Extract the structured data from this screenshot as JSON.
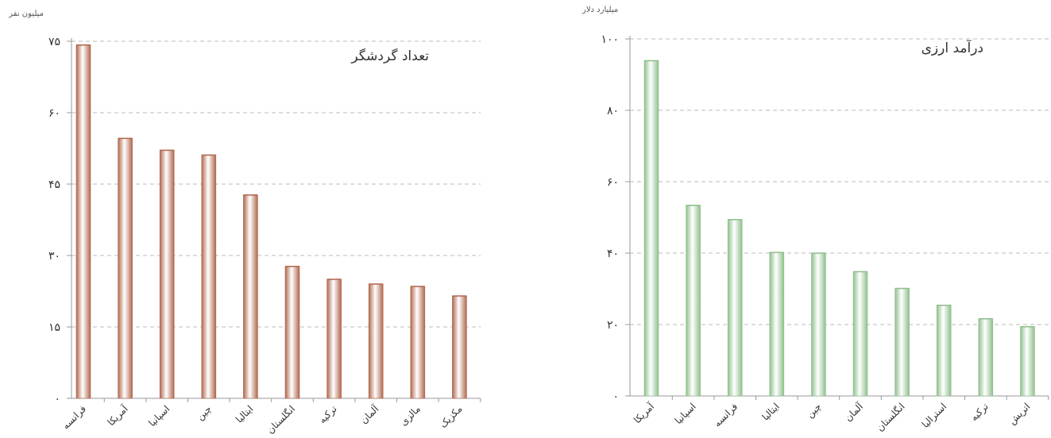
{
  "colors": {
    "tourists_bar": "#b0664c",
    "revenue_bar": "#8fbf8c",
    "axis": "#999999",
    "grid": "#bbbbbb",
    "text": "#333333"
  },
  "chart_data": [
    {
      "type": "bar",
      "title": "تعداد گردشگر",
      "ylabel": "میلیون نفر",
      "xlabel": "",
      "ylim": [
        0,
        75
      ],
      "yticks": [
        0,
        15,
        30,
        45,
        60,
        75
      ],
      "ytick_labels": [
        "۰",
        "۱۵",
        "۳۰",
        "۴۵",
        "۶۰",
        "۷۵"
      ],
      "grid": true,
      "categories": [
        "فرانسه",
        "آمریکا",
        "اسپانیا",
        "چین",
        "ایتالیا",
        "انگلستان",
        "ترکیه",
        "آلمان",
        "مالزی",
        "مکزیک"
      ],
      "values": [
        74.2,
        54.6,
        52.1,
        51.1,
        42.7,
        27.7,
        25.0,
        24.0,
        23.5,
        21.5
      ]
    },
    {
      "type": "bar",
      "title": "درآمد ارزی",
      "ylabel": "میلیارد دلار",
      "xlabel": "",
      "ylim": [
        0,
        100
      ],
      "yticks": [
        0,
        20,
        40,
        60,
        80,
        100
      ],
      "ytick_labels": [
        "۰",
        "۲۰",
        "۴۰",
        "۶۰",
        "۸۰",
        "۱۰۰"
      ],
      "grid": true,
      "categories": [
        "آمریکا",
        "اسپانیا",
        "فرانسه",
        "ایتالیا",
        "چین",
        "آلمان",
        "انگلستان",
        "استرالیا",
        "ترکیه",
        "اتریش"
      ],
      "values": [
        93.9,
        53.4,
        49.4,
        40.2,
        40.0,
        34.8,
        30.1,
        25.4,
        21.6,
        19.4
      ]
    }
  ]
}
